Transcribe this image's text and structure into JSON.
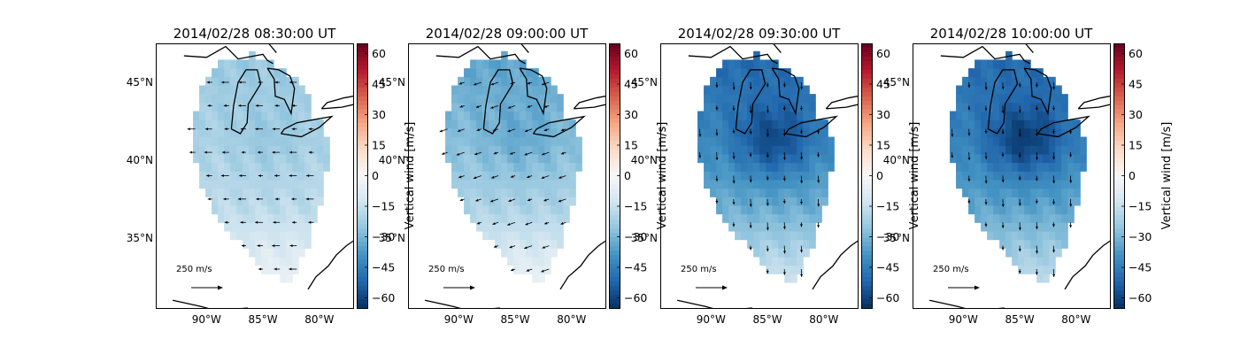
{
  "chart_data": {
    "type": "heatmap",
    "colorbar": {
      "label": "Vertical wind [m/s]",
      "range": [
        -65,
        65
      ],
      "ticks": [
        -60,
        -45,
        -30,
        -15,
        0,
        15,
        30,
        45,
        60
      ],
      "tick_labels": [
        "−60",
        "−45",
        "−30",
        "−15",
        "0",
        "15",
        "30",
        "45",
        "60"
      ],
      "colormap": [
        "#053061",
        "#2166ac",
        "#4393c3",
        "#92c5de",
        "#d1e5f0",
        "#f7f7f7",
        "#fddbc7",
        "#f4a582",
        "#d6604d",
        "#b2182b",
        "#67001f"
      ]
    },
    "map": {
      "lon_range": [
        -94.5,
        -77.0
      ],
      "lat_range": [
        30.5,
        47.5
      ],
      "lon_ticks": [
        -90,
        -85,
        -80
      ],
      "lon_tick_labels": [
        "90°W",
        "85°W",
        "80°W"
      ],
      "lat_ticks": [
        35,
        40,
        45
      ],
      "lat_tick_labels": [
        "35°N",
        "40°N",
        "45°N"
      ]
    },
    "vector_scale_label": "250 m/s",
    "vector_scale_value": 250,
    "panels": [
      {
        "title": "2014/02/28 08:30:00 UT",
        "mean_vertical_wind": -18,
        "north_bias": -6,
        "center_anomaly": -4,
        "vector_direction": "west"
      },
      {
        "title": "2014/02/28 09:00:00 UT",
        "mean_vertical_wind": -22,
        "north_bias": -12,
        "center_anomaly": -6,
        "vector_direction": "west-southwest"
      },
      {
        "title": "2014/02/28 09:30:00 UT",
        "mean_vertical_wind": -34,
        "north_bias": -16,
        "center_anomaly": -18,
        "vector_direction": "south"
      },
      {
        "title": "2014/02/28 10:00:00 UT",
        "mean_vertical_wind": -36,
        "north_bias": -14,
        "center_anomaly": -20,
        "vector_direction": "south"
      }
    ]
  }
}
